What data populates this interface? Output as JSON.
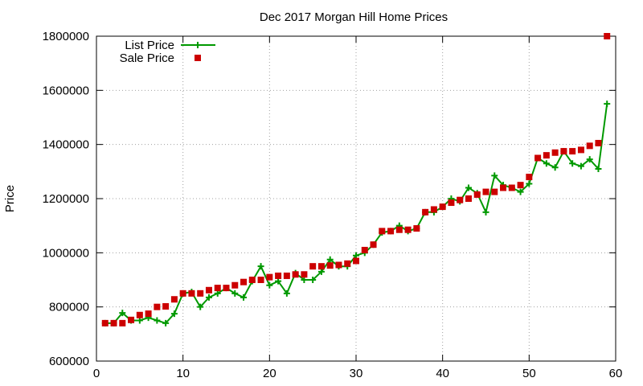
{
  "chart_data": {
    "type": "line",
    "title": "Dec 2017 Morgan Hill Home Prices",
    "xlabel": "",
    "ylabel": "Price",
    "xlim": [
      0,
      60
    ],
    "ylim": [
      600000,
      1800000
    ],
    "xticks": [
      0,
      10,
      20,
      30,
      40,
      50,
      60
    ],
    "yticks": [
      600000,
      800000,
      1000000,
      1200000,
      1400000,
      1600000,
      1800000
    ],
    "x_tick_labels": [
      "0",
      "10",
      "20",
      "30",
      "40",
      "50",
      "60"
    ],
    "y_tick_labels": [
      "600000",
      "800000",
      "1000000",
      "1200000",
      "1400000",
      "1600000",
      "1800000"
    ],
    "grid": true,
    "legend_position": "top-left",
    "series": [
      {
        "name": "List Price",
        "style": "linespoints",
        "color": "#009900",
        "marker": "plus",
        "x": [
          1,
          2,
          3,
          4,
          5,
          6,
          7,
          8,
          9,
          10,
          11,
          12,
          13,
          14,
          15,
          16,
          17,
          18,
          19,
          20,
          21,
          22,
          23,
          24,
          25,
          26,
          27,
          28,
          29,
          30,
          31,
          32,
          33,
          34,
          35,
          36,
          37,
          38,
          39,
          40,
          41,
          42,
          43,
          44,
          45,
          46,
          47,
          48,
          49,
          50,
          51,
          52,
          53,
          54,
          55,
          56,
          57,
          58,
          59
        ],
        "y": [
          740000,
          740000,
          778000,
          750000,
          750000,
          760000,
          750000,
          740000,
          775000,
          850000,
          855000,
          800000,
          835000,
          850000,
          870000,
          850000,
          835000,
          895000,
          950000,
          880000,
          895000,
          850000,
          925000,
          900000,
          900000,
          930000,
          975000,
          950000,
          950000,
          990000,
          1000000,
          1030000,
          1075000,
          1080000,
          1100000,
          1080000,
          1090000,
          1150000,
          1150000,
          1170000,
          1200000,
          1190000,
          1240000,
          1220000,
          1150000,
          1285000,
          1250000,
          1240000,
          1225000,
          1255000,
          1350000,
          1330000,
          1315000,
          1375000,
          1330000,
          1320000,
          1345000,
          1310000,
          1550000
        ]
      },
      {
        "name": "Sale Price",
        "style": "points",
        "color": "#cc0000",
        "marker": "square",
        "x": [
          1,
          2,
          3,
          4,
          5,
          6,
          7,
          8,
          9,
          10,
          11,
          12,
          13,
          14,
          15,
          16,
          17,
          18,
          19,
          20,
          21,
          22,
          23,
          24,
          25,
          26,
          27,
          28,
          29,
          30,
          31,
          32,
          33,
          34,
          35,
          36,
          37,
          38,
          39,
          40,
          41,
          42,
          43,
          44,
          45,
          46,
          47,
          48,
          49,
          50,
          51,
          52,
          53,
          54,
          55,
          56,
          57,
          58,
          59
        ],
        "y": [
          740000,
          740000,
          740000,
          752000,
          770000,
          775000,
          800000,
          802000,
          828000,
          850000,
          850000,
          850000,
          862000,
          870000,
          870000,
          880000,
          892000,
          900000,
          900000,
          910000,
          915000,
          915000,
          920000,
          920000,
          950000,
          950000,
          953000,
          955000,
          960000,
          970000,
          1010000,
          1030000,
          1080000,
          1080000,
          1085000,
          1085000,
          1090000,
          1150000,
          1160000,
          1170000,
          1185000,
          1195000,
          1200000,
          1215000,
          1225000,
          1225000,
          1240000,
          1240000,
          1250000,
          1280000,
          1350000,
          1360000,
          1370000,
          1375000,
          1375000,
          1380000,
          1395000,
          1405000,
          1800000
        ]
      }
    ]
  }
}
